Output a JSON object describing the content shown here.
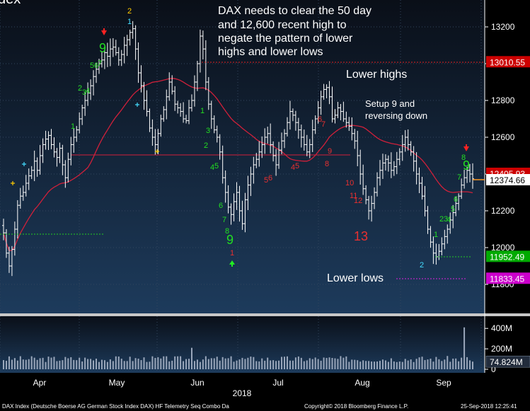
{
  "header": {
    "partial_title": "dex"
  },
  "colors": {
    "background_top": "#0a0f18",
    "background_bottom": "#1d3b5c",
    "price_bars": "#ffffff",
    "moving_average": "#d0203a",
    "buy_count": "#22dd22",
    "sell_count": "#e83030",
    "volume_bars": "#9aa7bb",
    "label_resistance": "#cc0000",
    "label_last": "#ffffff",
    "label_support": "#00aa00",
    "label_low": "#cc00cc",
    "label_volume": "#222c3c"
  },
  "annotations": {
    "headline": [
      "DAX needs to clear the 50 day",
      "and 12,600 recent high to",
      "negate the pattern of lower",
      "highs and lower lows"
    ],
    "lower_highs": "Lower highs",
    "setup9": [
      "Setup 9 and",
      "reversing down"
    ],
    "lower_lows": "Lower lows"
  },
  "chart_data": {
    "type": "ohlc",
    "x_tick_labels": [
      "Apr",
      "May",
      "Jun",
      "Jul",
      "Aug",
      "Sep"
    ],
    "year_label": "2018",
    "y_ticks": [
      11800,
      12000,
      12200,
      12400,
      12600,
      12800,
      13000,
      13200
    ],
    "y_tick_labels": [
      "11800",
      "12000",
      "12200",
      "12400",
      "12600",
      "12800",
      "13000",
      "13200"
    ],
    "ylim": [
      11700,
      13280
    ],
    "price_labels": [
      {
        "name": "recent-high",
        "value": 13010.55,
        "text": "13010.55",
        "style": "resistance",
        "line": "dotted"
      },
      {
        "name": "last-price",
        "value": 12374.66,
        "text": "12374.66",
        "style": "last",
        "line": "solid"
      },
      {
        "name": "ma-value",
        "value": 12405.93,
        "text": "12405.93",
        "style": "resistance",
        "line": "none"
      },
      {
        "name": "support",
        "value": 11952.49,
        "text": "11952.49",
        "style": "support",
        "line": "dotted"
      },
      {
        "name": "low",
        "value": 11833.45,
        "text": "11833.45",
        "style": "low",
        "line": "dotted"
      }
    ],
    "horizontal_line": {
      "value": 12600,
      "label": "12,600"
    },
    "volume": {
      "y_tick_labels": [
        "400M",
        "200M",
        "0"
      ],
      "y_ticks": [
        400,
        200,
        0
      ],
      "ylim": [
        0,
        450
      ],
      "last_label": "74.824M",
      "last_value": 74.824,
      "spike_value": 410,
      "spike_date": "2018-09-21"
    },
    "series": [
      {
        "name": "DAX Index"
      }
    ],
    "sequential_counts": {
      "buy_setup_1": [
        "1",
        "2",
        "3",
        "4",
        "5",
        "6",
        "7",
        "8",
        "9"
      ],
      "sell_setup_1": [
        "1",
        "2",
        "3",
        "4",
        "5",
        "6",
        "7",
        "8",
        "9"
      ],
      "buy_setup_2": [
        "1",
        "2",
        "3",
        "4",
        "5",
        "6",
        "7",
        "8",
        "9"
      ],
      "sell_setup_2": [
        "1",
        "2",
        "3",
        "4",
        "5",
        "6",
        "7",
        "8",
        "9"
      ],
      "countdown_1": [
        "12",
        "13"
      ],
      "countdown_2": [
        "4",
        "5",
        "6",
        "7",
        "8",
        "9",
        "10",
        "11",
        "12",
        "13"
      ],
      "big_13": "13",
      "big_9": [
        "9",
        "9",
        "9"
      ]
    }
  },
  "footer": {
    "left": "DAX Index (Deutsche Boerse AG German Stock Index DAX) HF Telemetry Seq Combo  Da",
    "center": "Copyright© 2018 Bloomberg Finance L.P.",
    "right": "25-Sep-2018 12:25:41"
  }
}
